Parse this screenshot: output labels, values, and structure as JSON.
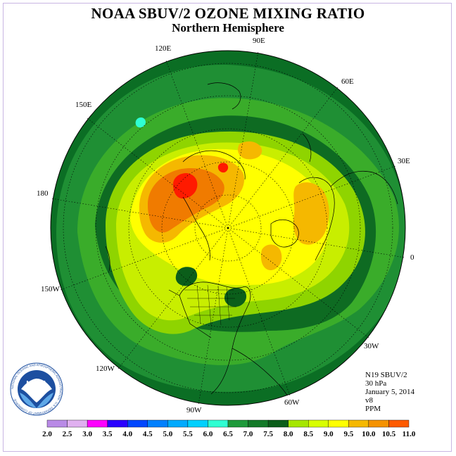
{
  "title": "NOAA SBUV/2 OZONE MIXING RATIO",
  "subtitle": "Northern Hemisphere",
  "longitude_labels": [
    "90E",
    "60E",
    "30E",
    "0",
    "30W",
    "60W",
    "90W",
    "120W",
    "150W",
    "180",
    "150E",
    "120E"
  ],
  "info": {
    "satellite": "N19 SBUV/2",
    "level": "30 hPa",
    "date": "January 5, 2014",
    "version": "v8",
    "units": "PPM"
  },
  "logo": {
    "text": "NOAA",
    "ring_text": "NATIONAL OCEANIC AND ATMOSPHERIC ADMINISTRATION · U.S. DEPARTMENT OF COMMERCE"
  },
  "colorbar": {
    "ticks": [
      "2.0",
      "2.5",
      "3.0",
      "3.5",
      "4.0",
      "4.5",
      "5.0",
      "5.5",
      "6.0",
      "6.5",
      "7.0",
      "7.5",
      "8.0",
      "8.5",
      "9.0",
      "9.5",
      "10.0",
      "10.5",
      "11.0"
    ],
    "colors": [
      "#b98ae6",
      "#e0b0f0",
      "#ff00ff",
      "#2a00ff",
      "#0046ff",
      "#0080ff",
      "#00aaff",
      "#00d0ff",
      "#2fffd2",
      "#1e9a3a",
      "#137a28",
      "#0b5e1a",
      "#a6e600",
      "#d8ff00",
      "#ffff00",
      "#f5b800",
      "#f59200",
      "#ff5a00",
      "#ff0000",
      "#8b5a3c"
    ]
  },
  "map_colors": {
    "ocean_edge": "#0b6e24",
    "green_mid": "#1e9a3a",
    "green_light": "#5cc000",
    "yellow_green": "#c8ee00",
    "yellow": "#ffff00",
    "orange": "#f5b800",
    "dark_orange": "#f07b00",
    "red": "#ff1a00"
  }
}
